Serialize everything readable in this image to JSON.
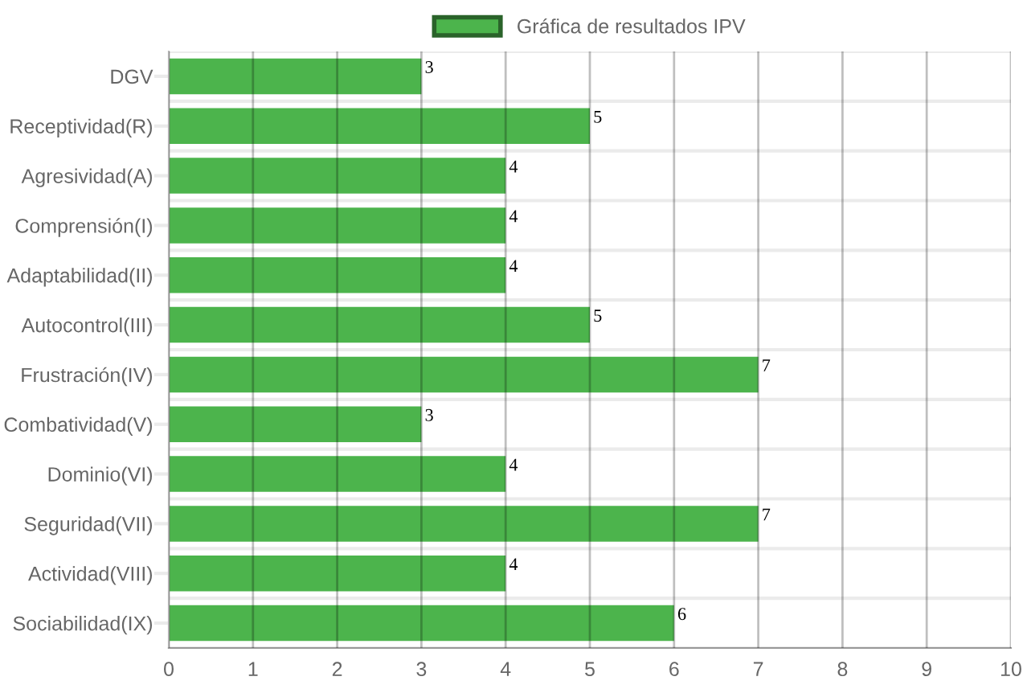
{
  "chart_data": {
    "type": "bar",
    "orientation": "horizontal",
    "categories": [
      "DGV",
      "Receptividad(R)",
      "Agresividad(A)",
      "Comprensión(I)",
      "Adaptabilidad(II)",
      "Autocontrol(III)",
      "Frustración(IV)",
      "Combatividad(V)",
      "Dominio(VI)",
      "Seguridad(VII)",
      "Actividad(VIII)",
      "Sociabilidad(IX)"
    ],
    "series": [
      {
        "name": "Gráfica de resultados IPV",
        "color": "#4cb44c",
        "values": [
          3,
          5,
          4,
          4,
          4,
          5,
          7,
          3,
          4,
          7,
          4,
          6
        ]
      }
    ],
    "xlim": [
      0,
      10
    ],
    "xticks": [
      0,
      1,
      2,
      3,
      4,
      5,
      6,
      7,
      8,
      9,
      10
    ],
    "grid": true,
    "legend": "top",
    "data_labels": true
  }
}
